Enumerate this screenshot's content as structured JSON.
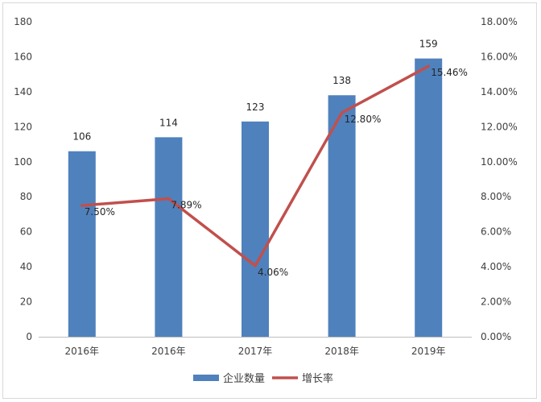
{
  "chart_data": {
    "type": "bar",
    "categories": [
      "2016年",
      "2016年",
      "2017年",
      "2018年",
      "2019年"
    ],
    "series": [
      {
        "name": "企业数量",
        "type": "bar",
        "axis": "left",
        "values": [
          106,
          114,
          123,
          138,
          159
        ],
        "labels": [
          "106",
          "114",
          "123",
          "138",
          "159"
        ],
        "color": "#4f81bd"
      },
      {
        "name": "增长率",
        "type": "line",
        "axis": "right",
        "values": [
          7.5,
          7.89,
          4.06,
          12.8,
          15.46
        ],
        "labels": [
          "7.50%",
          "7.89%",
          "4.06%",
          "12.80%",
          "15.46%"
        ],
        "color": "#c0504d"
      }
    ],
    "y_left": {
      "min": 0,
      "max": 180,
      "step": 20,
      "ticks": [
        "0",
        "20",
        "40",
        "60",
        "80",
        "100",
        "120",
        "140",
        "160",
        "180"
      ]
    },
    "y_right": {
      "min": 0,
      "max": 18,
      "step": 2,
      "ticks": [
        "0.00%",
        "2.00%",
        "4.00%",
        "6.00%",
        "8.00%",
        "10.00%",
        "12.00%",
        "14.00%",
        "16.00%",
        "18.00%"
      ]
    },
    "grid": false,
    "legend": "bottom"
  }
}
